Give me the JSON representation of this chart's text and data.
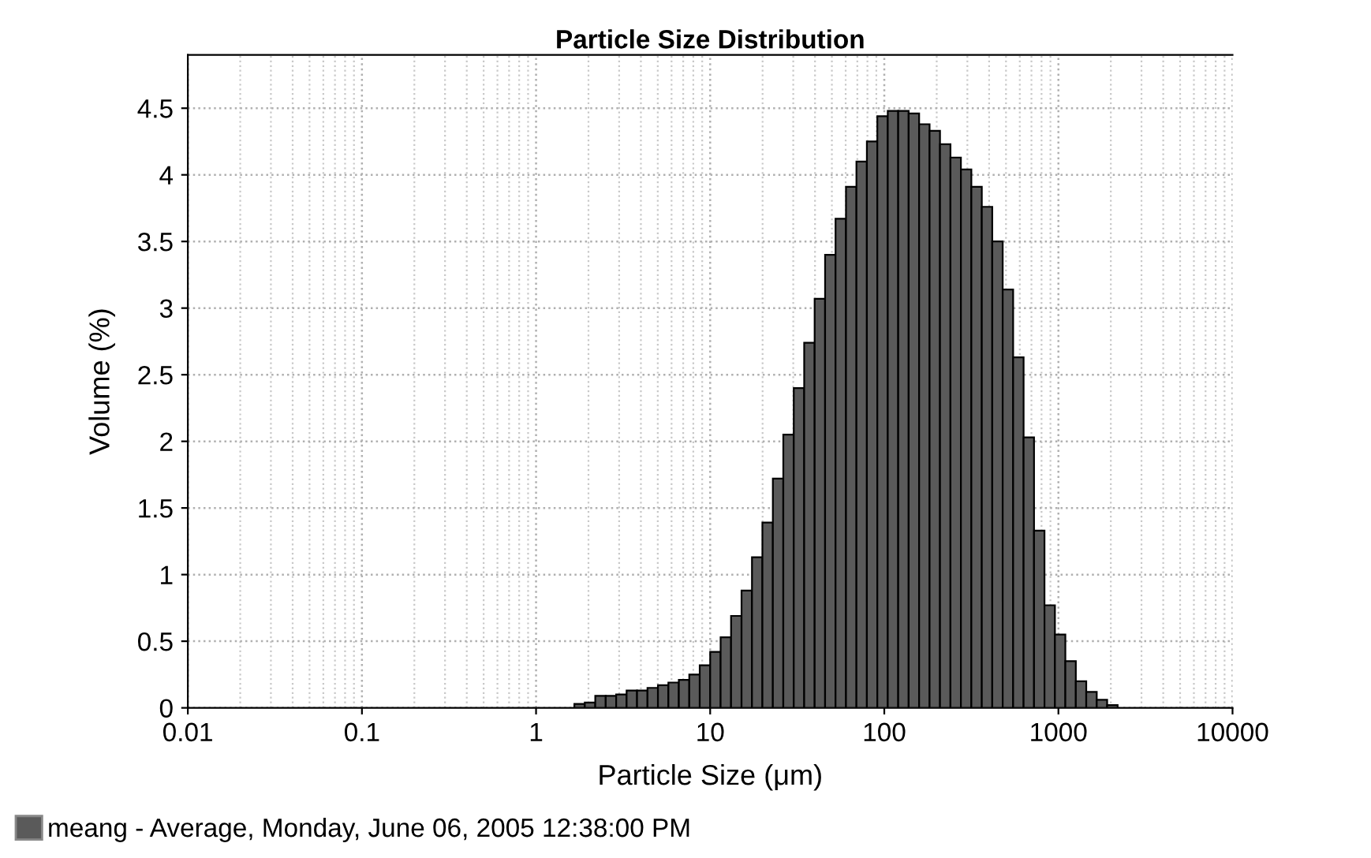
{
  "chart_data": {
    "type": "histogram",
    "title": "Particle Size Distribution",
    "xlabel": "Particle Size (μm)",
    "ylabel": "Volume (%)",
    "bins": [
      1.66,
      1.905,
      2.188,
      2.512,
      2.884,
      3.311,
      3.802,
      4.365,
      5.012,
      5.754,
      6.607,
      7.586,
      8.71,
      10,
      11.48,
      13.18,
      15.14,
      17.38,
      19.95,
      22.91,
      26.3,
      30.2,
      34.67,
      39.81,
      45.71,
      52.48,
      60.26,
      69.18,
      79.43,
      91.2,
      104.7,
      120.2,
      138.0,
      158.5,
      182.0,
      208.9,
      239.9,
      275.4,
      316.2,
      363.1,
      416.9,
      478.6,
      549.5,
      631.0,
      724.4,
      831.8,
      955.0,
      1096,
      1259,
      1445,
      1660,
      1905,
      2188
    ],
    "series": [
      {
        "name": "meang - Average, Monday, June 06, 2005 12:38:00 PM",
        "color": "#5a5a5a",
        "values": [
          0.03,
          0.04,
          0.09,
          0.09,
          0.1,
          0.13,
          0.13,
          0.15,
          0.17,
          0.19,
          0.21,
          0.25,
          0.32,
          0.42,
          0.53,
          0.69,
          0.88,
          1.13,
          1.39,
          1.72,
          2.05,
          2.4,
          2.74,
          3.07,
          3.4,
          3.67,
          3.91,
          4.1,
          4.25,
          4.44,
          4.48,
          4.48,
          4.46,
          4.38,
          4.33,
          4.23,
          4.13,
          4.04,
          3.91,
          3.76,
          3.5,
          3.14,
          2.63,
          2.03,
          1.33,
          0.77,
          0.55,
          0.35,
          0.2,
          0.12,
          0.06,
          0.02
        ]
      }
    ],
    "log": "x",
    "xlim": [
      0.01,
      10000
    ],
    "xticks": [
      {
        "value": 0.01,
        "label": "0.01"
      },
      {
        "value": 0.1,
        "label": "0.1"
      },
      1,
      10,
      100,
      1000,
      10000
    ],
    "ylim": [
      0,
      4.9
    ],
    "yticks": [
      0,
      0.5,
      1,
      1.5,
      2,
      2.5,
      3,
      3.5,
      4,
      4.5
    ],
    "grid": true,
    "legend": "bottom left"
  }
}
